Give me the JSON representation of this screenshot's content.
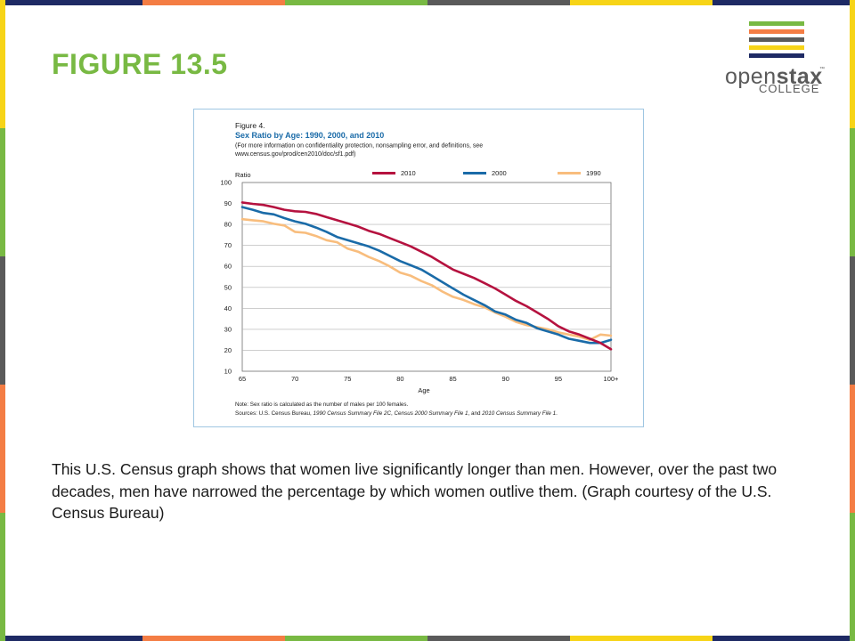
{
  "slide": {
    "title": "FIGURE 13.5",
    "caption": "This U.S. Census graph shows that women live significantly longer than men. However, over the past two decades, men have narrowed the percentage by which women outlive them. (Graph courtesy of the U.S. Census Bureau)"
  },
  "logo": {
    "text_main": "open",
    "text_bold": "stax",
    "text_tm": "™",
    "text_sub": "COLLEGE",
    "stripe_colors": [
      "#78b943",
      "#f47d44",
      "#5a5a5a",
      "#f7d417",
      "#1e2a64"
    ]
  },
  "border_colors": [
    "#1e2a64",
    "#f47d44",
    "#78b943",
    "#5a5a5a",
    "#f7d417"
  ],
  "chart_data": {
    "type": "line",
    "figure_label": "Figure 4.",
    "title": "Sex Ratio by Age: 1990, 2000, and 2010",
    "subtitle_line1": "(For more information on confidentiality protection, nonsampling error, and definitions, see",
    "subtitle_line2": "www.census.gov/prod/cen2010/doc/sf1.pdf)",
    "ylabel": "Ratio",
    "xlabel": "Age",
    "ylim": [
      10,
      100
    ],
    "xlim": [
      65,
      100
    ],
    "y_ticks": [
      "100",
      "90",
      "80",
      "70",
      "60",
      "50",
      "40",
      "30",
      "20",
      "10"
    ],
    "x_ticks": [
      "65",
      "70",
      "75",
      "80",
      "85",
      "90",
      "95",
      "100+"
    ],
    "grid": true,
    "legend_position": "top",
    "note": "Note: Sex ratio is calculated as the number of males per 100 females.",
    "sources_prefix": "Sources: U.S. Census Bureau, ",
    "source_1990": "1990 Census Summary File 2C",
    "source_sep1": ", ",
    "source_2000": "Census 2000 Summary File 1",
    "source_sep2": ", and ",
    "source_2010": "2010 Census Summary File 1",
    "source_end": ".",
    "x": [
      65,
      66,
      67,
      68,
      69,
      70,
      71,
      72,
      73,
      74,
      75,
      76,
      77,
      78,
      79,
      80,
      81,
      82,
      83,
      84,
      85,
      86,
      87,
      88,
      89,
      90,
      91,
      92,
      93,
      94,
      95,
      96,
      97,
      98,
      99,
      100
    ],
    "series": [
      {
        "name": "2010",
        "color": "#b5123f",
        "values": [
          90.5,
          89.8,
          89.3,
          88.3,
          87.0,
          86.3,
          86.0,
          85.0,
          83.5,
          82.0,
          80.5,
          79.0,
          77.0,
          75.5,
          73.5,
          71.5,
          69.5,
          67.0,
          64.5,
          61.5,
          58.5,
          56.5,
          54.5,
          52.0,
          49.5,
          46.5,
          43.5,
          41.0,
          38.0,
          35.0,
          31.5,
          29.0,
          27.5,
          25.5,
          23.5,
          20.5
        ]
      },
      {
        "name": "2000",
        "color": "#1a6ba8",
        "values": [
          88.3,
          87.0,
          85.5,
          84.8,
          83.0,
          81.5,
          80.3,
          78.5,
          76.5,
          74.0,
          72.5,
          71.0,
          69.5,
          67.5,
          65.0,
          62.5,
          60.5,
          58.5,
          55.5,
          52.5,
          49.5,
          46.5,
          44.0,
          41.5,
          38.5,
          37.0,
          34.5,
          33.0,
          30.5,
          29.0,
          27.5,
          25.5,
          24.5,
          23.5,
          23.5,
          25.0
        ]
      },
      {
        "name": "1990",
        "color": "#f8bd7d",
        "values": [
          82.5,
          82.0,
          81.5,
          80.3,
          79.5,
          76.5,
          76.0,
          74.5,
          72.5,
          71.5,
          68.5,
          67.0,
          64.5,
          62.5,
          60.0,
          57.0,
          55.5,
          53.0,
          51.0,
          48.0,
          45.5,
          44.0,
          42.0,
          40.5,
          38.0,
          36.0,
          33.5,
          32.0,
          31.0,
          30.0,
          28.5,
          27.5,
          26.5,
          25.0,
          27.5,
          27.0
        ]
      }
    ]
  }
}
